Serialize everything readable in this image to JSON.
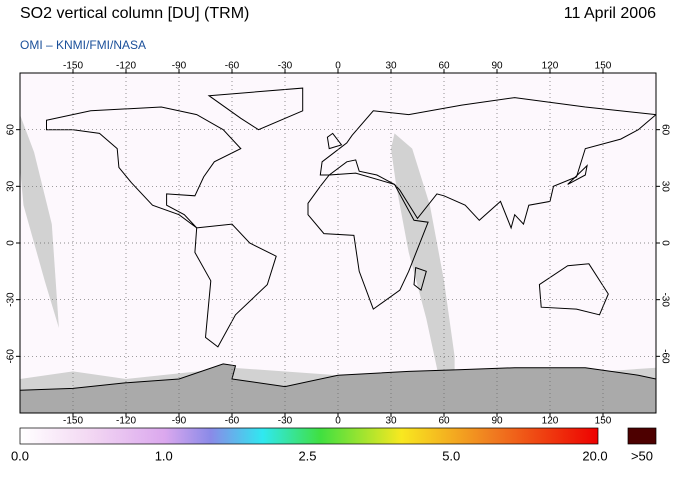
{
  "header": {
    "title": "SO2 vertical column [DU] (TRM)",
    "date": "11 April 2006",
    "subtitle": "OMI  –  KNMI/FMI/NASA"
  },
  "map": {
    "lon_ticks": [
      -150,
      -120,
      -90,
      -60,
      -30,
      0,
      30,
      60,
      90,
      120,
      150
    ],
    "lat_ticks": [
      60,
      30,
      0,
      -30,
      -60
    ]
  },
  "colorbar": {
    "ticks": [
      {
        "value": 0,
        "label": "0.0"
      },
      {
        "value": 1,
        "label": "1.0"
      },
      {
        "value": 2.5,
        "label": "2.5"
      },
      {
        "value": 5,
        "label": "5.0"
      },
      {
        "value": 20,
        "label": "20.0"
      }
    ],
    "overflow_label": ">50"
  }
}
